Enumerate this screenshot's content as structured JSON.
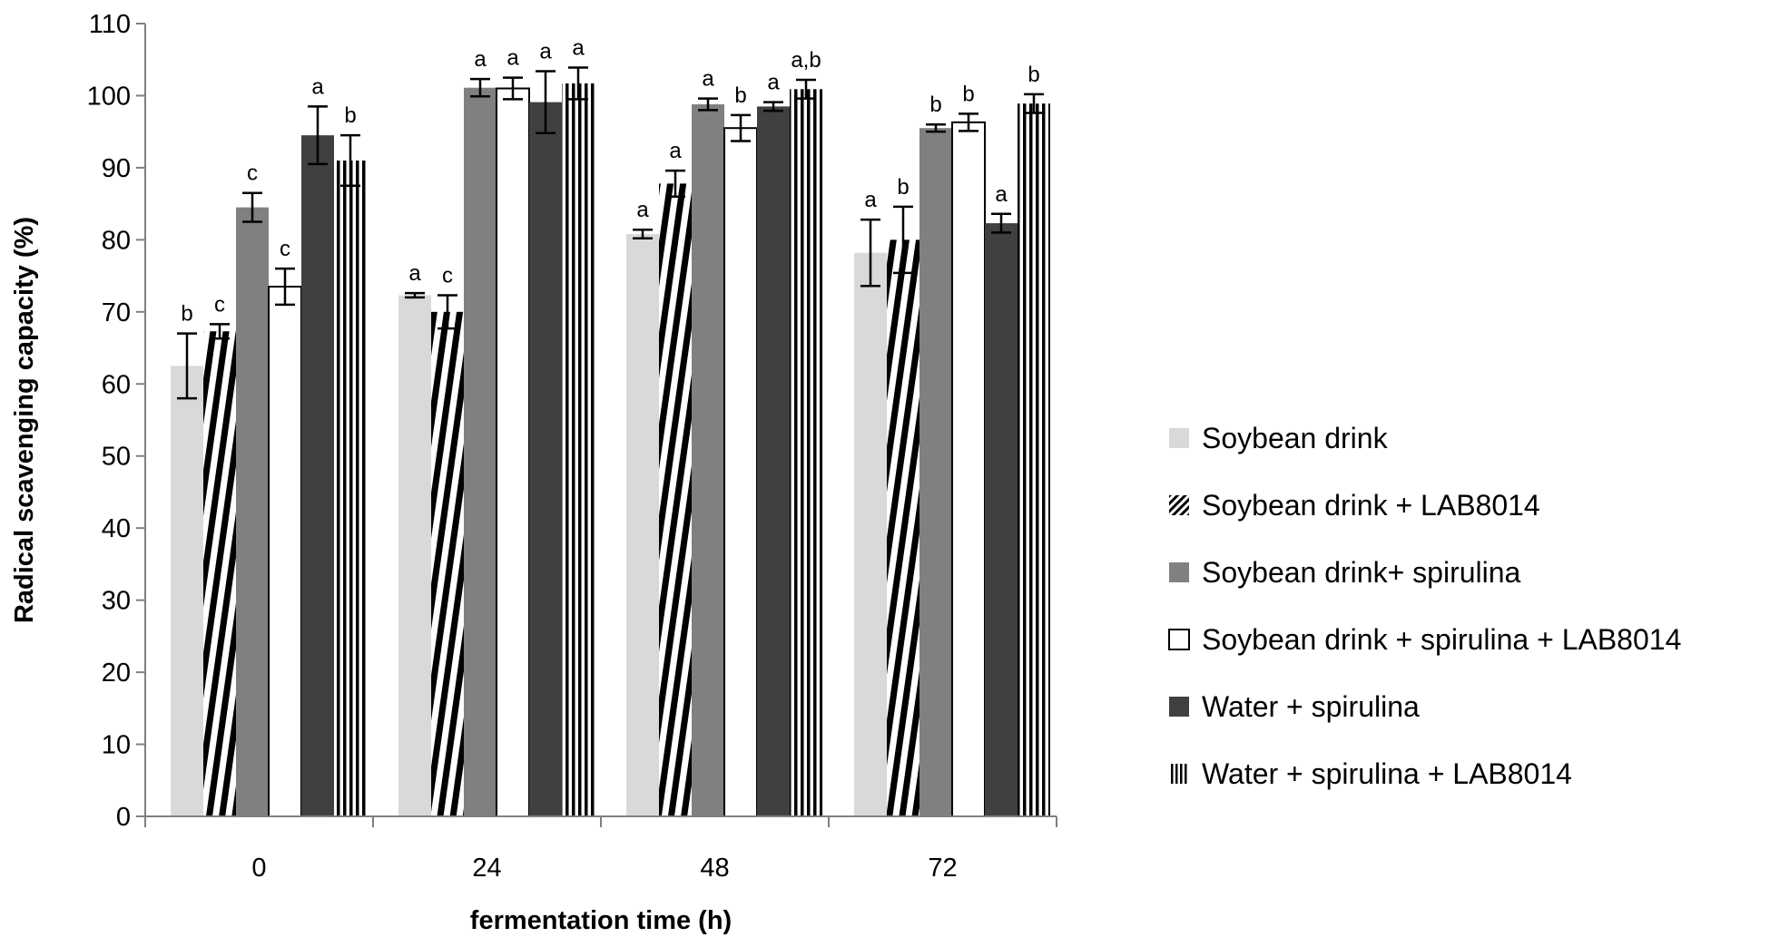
{
  "chart_data": {
    "type": "bar",
    "title": "",
    "xlabel": "fermentation time (h)",
    "ylabel": "Radical scavenging capacity (%)",
    "ylim": [
      0,
      110
    ],
    "ytick_step": 10,
    "grid": false,
    "legend_position": "right",
    "categories": [
      "0",
      "24",
      "48",
      "72"
    ],
    "series": [
      {
        "name": "Soybean drink",
        "pattern": "solid-light",
        "values": [
          62.5,
          72.3,
          80.8,
          78.2
        ],
        "errors": [
          4.5,
          0.3,
          0.6,
          4.6
        ],
        "labels": [
          "b",
          "a",
          "a",
          "a"
        ]
      },
      {
        "name": "Soybean drink + LAB8014",
        "pattern": "diagonal-stripes",
        "values": [
          67.3,
          70.0,
          87.8,
          80.0
        ],
        "errors": [
          1.0,
          2.3,
          1.8,
          4.6
        ],
        "labels": [
          "c",
          "c",
          "a",
          "b"
        ]
      },
      {
        "name": "Soybean drink+ spirulina",
        "pattern": "solid-medium",
        "values": [
          84.5,
          101.1,
          98.8,
          95.5
        ],
        "errors": [
          2.0,
          1.2,
          0.8,
          0.5
        ],
        "labels": [
          "c",
          "a",
          "a",
          "b"
        ]
      },
      {
        "name": "Soybean drink + spirulina + LAB8014",
        "pattern": "white",
        "values": [
          73.5,
          101.0,
          95.5,
          96.3
        ],
        "errors": [
          2.5,
          1.5,
          1.8,
          1.2
        ],
        "labels": [
          "c",
          "a",
          "b",
          "b"
        ]
      },
      {
        "name": "Water + spirulina",
        "pattern": "solid-dark",
        "values": [
          94.5,
          99.1,
          98.5,
          82.3
        ],
        "errors": [
          4.0,
          4.3,
          0.6,
          1.3
        ],
        "labels": [
          "a",
          "a",
          "a",
          "a"
        ]
      },
      {
        "name": "Water + spirulina + LAB8014",
        "pattern": "vertical-stripes",
        "values": [
          91.0,
          101.7,
          100.9,
          98.9
        ],
        "errors": [
          3.5,
          2.2,
          1.3,
          1.3
        ],
        "labels": [
          "b",
          "a",
          "a,b",
          "b"
        ]
      }
    ]
  }
}
